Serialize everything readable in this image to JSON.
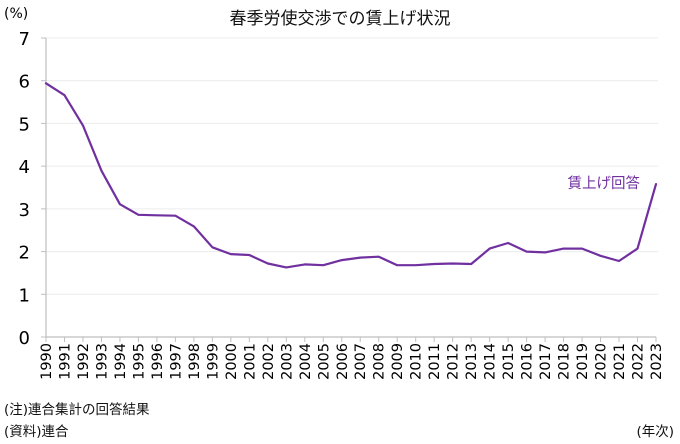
{
  "title": "春季労使交渉での賃上げ状況",
  "y_unit": "(%)",
  "x_unit": "(年次)",
  "notes": {
    "note": "(注)連合集計の回答結果",
    "source": "(資料)連合"
  },
  "colors": {
    "line": "#7030a0",
    "grid": "#ececec",
    "axis": "#bfbfbf",
    "text": "#000000"
  },
  "chart_data": {
    "type": "line",
    "title": "春季労使交渉での賃上げ状況",
    "xlabel": "(年次)",
    "ylabel": "(%)",
    "ylim": [
      0,
      7
    ],
    "yticks": [
      0,
      1,
      2,
      3,
      4,
      5,
      6,
      7
    ],
    "grid": true,
    "legend_position": "inline-label-right",
    "categories": [
      "1990",
      "1991",
      "1992",
      "1993",
      "1994",
      "1995",
      "1996",
      "1997",
      "1998",
      "1999",
      "2000",
      "2001",
      "2002",
      "2003",
      "2004",
      "2005",
      "2006",
      "2007",
      "2008",
      "2009",
      "2010",
      "2011",
      "2012",
      "2013",
      "2014",
      "2015",
      "2016",
      "2017",
      "2018",
      "2019",
      "2020",
      "2021",
      "2022",
      "2023"
    ],
    "series": [
      {
        "name": "賃上げ回答",
        "values": [
          5.94,
          5.66,
          4.95,
          3.89,
          3.11,
          2.86,
          2.85,
          2.84,
          2.59,
          2.1,
          1.94,
          1.92,
          1.72,
          1.63,
          1.7,
          1.68,
          1.8,
          1.86,
          1.88,
          1.68,
          1.68,
          1.71,
          1.72,
          1.71,
          2.07,
          2.2,
          2.0,
          1.98,
          2.07,
          2.07,
          1.9,
          1.78,
          2.07,
          3.58
        ]
      }
    ],
    "annotations": [
      {
        "text": "賃上げ回答",
        "near": "2023"
      }
    ]
  }
}
